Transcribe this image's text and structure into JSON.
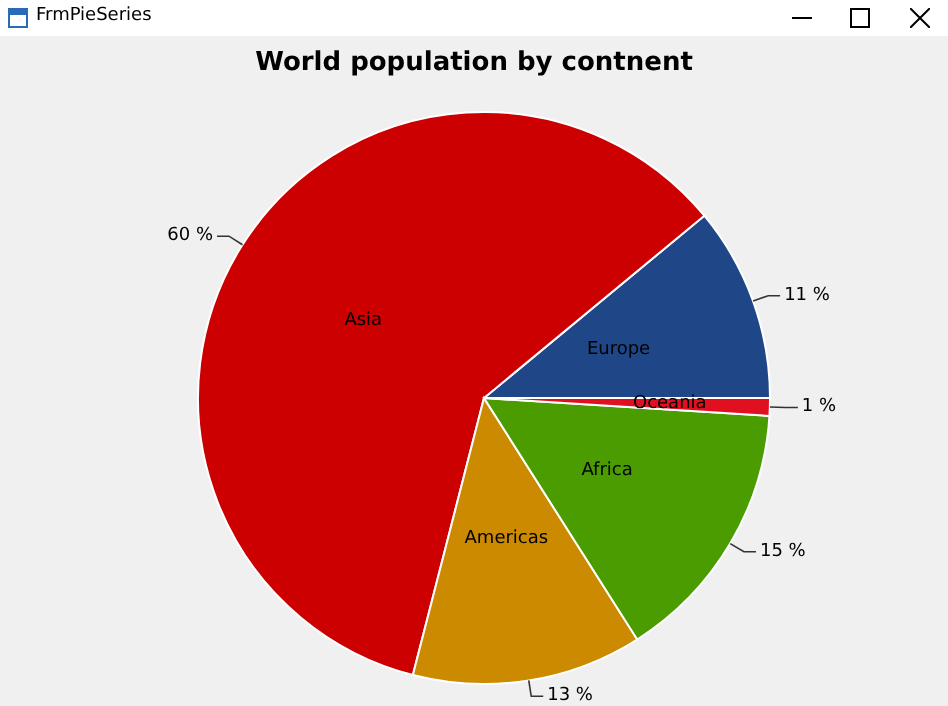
{
  "chart_data": {
    "type": "pie",
    "title": "World population by contnent",
    "categories": [
      "Europe",
      "Asia",
      "Americas",
      "Africa",
      "Oceania"
    ],
    "values": [
      11,
      60,
      13,
      15,
      1
    ],
    "colors": [
      "#1f4788",
      "#cc0000",
      "#cc8a00",
      "#4a9c00",
      "#e01020"
    ],
    "value_labels": [
      "11 %",
      "60 %",
      "13 %",
      "15 %",
      "1 %"
    ],
    "annotations": [
      "FrmPieSeries"
    ]
  }
}
